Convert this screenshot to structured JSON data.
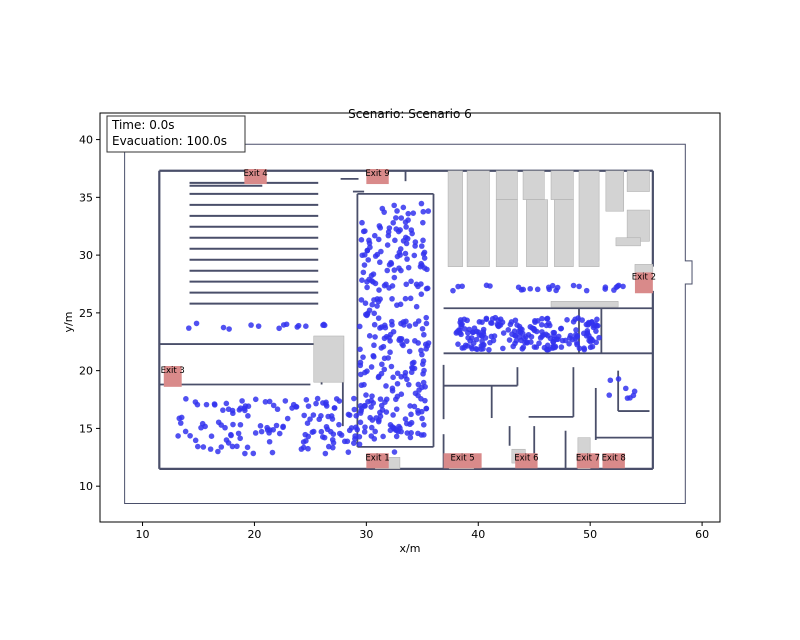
{
  "chart_data": {
    "type": "scatter",
    "title": "Scenario: Scenario 6",
    "xlabel": "x/m",
    "ylabel": "y/m",
    "xlim": [
      6.2,
      61.6
    ],
    "ylim": [
      6.9,
      42.3
    ],
    "x_ticks": [
      10,
      20,
      30,
      40,
      50,
      60
    ],
    "y_ticks": [
      10,
      15,
      20,
      25,
      30,
      35,
      40
    ],
    "grid": false,
    "legend": "none",
    "info_box": {
      "time": "Time: 0.0s",
      "evacuation": "Evacuation: 100.0s",
      "placement": "top-left"
    },
    "colors": {
      "agent": "#3333ee",
      "exit": "#d98a8a",
      "wall": "#4a4f6a",
      "obstacle": "#d3d3d3",
      "frame": "#000000"
    },
    "exits": [
      {
        "label": "Exit 1",
        "x": 31.0,
        "y": 12.2
      },
      {
        "label": "Exit 2",
        "x": 54.8,
        "y": 27.6
      },
      {
        "label": "Exit 3",
        "x": 12.7,
        "y": 19.5
      },
      {
        "label": "Exit 4",
        "x": 20.1,
        "y": 36.8
      },
      {
        "label": "Exit 5",
        "x": 38.6,
        "y": 12.2
      },
      {
        "label": "Exit 6",
        "x": 44.3,
        "y": 12.2
      },
      {
        "label": "Exit 7",
        "x": 49.8,
        "y": 12.2
      },
      {
        "label": "Exit 8",
        "x": 52.1,
        "y": 12.2
      },
      {
        "label": "Exit 9",
        "x": 31.0,
        "y": 36.8
      }
    ],
    "groups": [
      {
        "name": "",
        "count": 150,
        "x_range": [
          13.0,
          33.0
        ],
        "y_range": [
          12.8,
          17.6
        ]
      },
      {
        "name": "",
        "count": 15,
        "x_range": [
          13.5,
          26.5
        ],
        "y_range": [
          23.6,
          24.1
        ]
      },
      {
        "name": "",
        "count": 280,
        "x_range": [
          29.4,
          35.6
        ],
        "y_range": [
          14.2,
          34.5
        ]
      },
      {
        "name": "",
        "count": 25,
        "x_range": [
          37.5,
          53.0
        ],
        "y_range": [
          26.9,
          27.4
        ]
      },
      {
        "name": "",
        "count": 200,
        "x_range": [
          38.0,
          51.0
        ],
        "y_range": [
          21.8,
          24.6
        ]
      },
      {
        "name": "",
        "count": 8,
        "x_range": [
          51.5,
          54.0
        ],
        "y_range": [
          17.5,
          19.5
        ]
      }
    ]
  }
}
